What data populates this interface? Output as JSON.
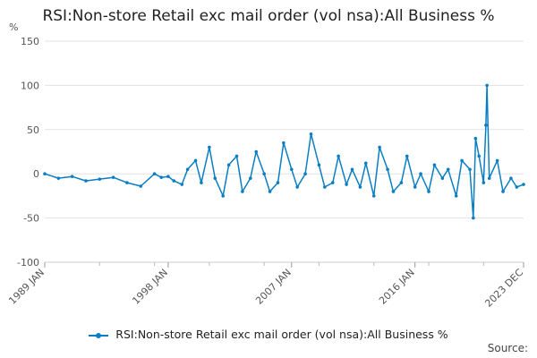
{
  "chart_data": {
    "type": "line",
    "title": "RSI:Non-store Retail exc mail order (vol nsa):All Business %",
    "ylabel": "%",
    "xlabel": "",
    "ylim": [
      -100,
      150
    ],
    "y_ticks": [
      150,
      100,
      50,
      0,
      -50,
      -100
    ],
    "x_tick_labels": [
      "1989 JAN",
      "1998 JAN",
      "2007 JAN",
      "2016 JAN",
      "2023 DEC"
    ],
    "x_range": [
      "1989-01",
      "2023-12"
    ],
    "grid": "horizontal",
    "legend_position": "bottom",
    "color": "#0a7ec2",
    "series": [
      {
        "name": "RSI:Non-store Retail exc mail order (vol nsa):All Business %",
        "x": [
          "1989-01",
          "1990-01",
          "1991-01",
          "1992-01",
          "1993-01",
          "1994-01",
          "1995-01",
          "1996-01",
          "1997-01",
          "1997-07",
          "1998-01",
          "1998-06",
          "1999-01",
          "1999-06",
          "2000-01",
          "2000-06",
          "2001-01",
          "2001-06",
          "2002-01",
          "2002-06",
          "2003-01",
          "2003-06",
          "2004-01",
          "2004-06",
          "2005-01",
          "2005-06",
          "2006-01",
          "2006-06",
          "2007-01",
          "2007-06",
          "2008-01",
          "2008-06",
          "2009-01",
          "2009-06",
          "2010-01",
          "2010-06",
          "2011-01",
          "2011-06",
          "2012-01",
          "2012-06",
          "2013-01",
          "2013-06",
          "2014-01",
          "2014-06",
          "2015-01",
          "2015-06",
          "2016-01",
          "2016-06",
          "2017-01",
          "2017-06",
          "2018-01",
          "2018-06",
          "2019-01",
          "2019-06",
          "2020-01",
          "2020-04",
          "2020-06",
          "2020-09",
          "2021-01",
          "2021-03",
          "2021-04",
          "2021-06",
          "2022-01",
          "2022-06",
          "2023-01",
          "2023-06",
          "2023-12"
        ],
        "values": [
          0,
          -5,
          -3,
          -8,
          -6,
          -4,
          -10,
          -14,
          0,
          -4,
          -3,
          -8,
          -12,
          5,
          15,
          -10,
          30,
          -5,
          -25,
          10,
          20,
          -20,
          -5,
          25,
          0,
          -20,
          -10,
          35,
          5,
          -15,
          0,
          45,
          10,
          -15,
          -10,
          20,
          -12,
          5,
          -15,
          12,
          -25,
          30,
          5,
          -20,
          -10,
          20,
          -15,
          0,
          -20,
          10,
          -5,
          5,
          -25,
          15,
          5,
          -50,
          40,
          20,
          -10,
          55,
          100,
          -5,
          15,
          -20,
          -5,
          -15,
          -12
        ]
      }
    ]
  },
  "source_label": "Source:"
}
